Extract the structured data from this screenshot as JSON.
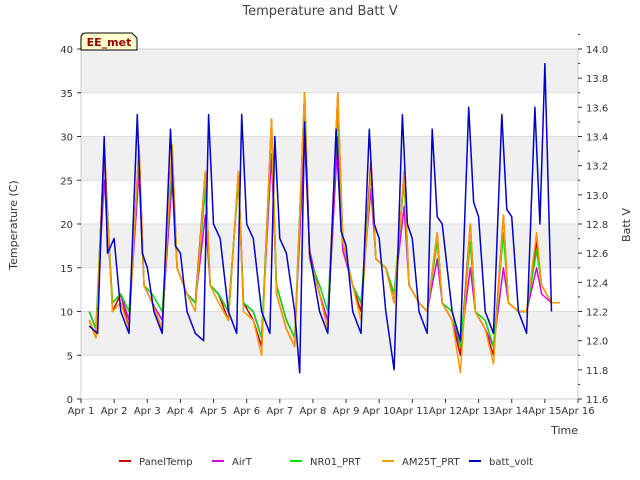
{
  "chart_data": {
    "type": "line",
    "title": "Temperature and Batt V",
    "xlabel": "Time",
    "ylabel": "Temperature (C)",
    "y2label": "Batt V",
    "site_label": "EE_met",
    "x_ticks": [
      "Apr 1",
      "Apr 2",
      "Apr 3",
      "Apr 4",
      "Apr 5",
      "Apr 6",
      "Apr 7",
      "Apr 8",
      "Apr 9",
      "Apr 10",
      "Apr 11",
      "Apr 12",
      "Apr 13",
      "Apr 14",
      "Apr 15",
      "Apr 16"
    ],
    "y_ticks": [
      "0",
      "5",
      "10",
      "15",
      "20",
      "25",
      "30",
      "35",
      "40"
    ],
    "y2_ticks": [
      "11.6",
      "11.8",
      "12.0",
      "12.2",
      "12.4",
      "12.6",
      "12.8",
      "13.0",
      "13.2",
      "13.4",
      "13.6",
      "13.8",
      "14.0"
    ],
    "xlim": [
      0,
      15
    ],
    "ylim": [
      0,
      40
    ],
    "y2lim": [
      11.6,
      14.0
    ],
    "grid": "horizontal bands",
    "legend_position": "bottom",
    "x_units": "day offset from Apr 1",
    "series": [
      {
        "name": "PanelTemp",
        "axis": "left",
        "color": "#cc0000",
        "x": [
          0.25,
          0.45,
          0.7,
          0.95,
          1.2,
          1.45,
          1.75,
          1.9,
          2.15,
          2.45,
          2.75,
          2.9,
          3.2,
          3.45,
          3.75,
          3.9,
          4.15,
          4.45,
          4.75,
          4.9,
          5.2,
          5.45,
          5.75,
          5.9,
          6.2,
          6.45,
          6.75,
          6.9,
          7.2,
          7.45,
          7.75,
          7.9,
          8.2,
          8.45,
          8.75,
          8.9,
          9.2,
          9.45,
          9.75,
          9.9,
          10.2,
          10.45,
          10.75,
          10.9,
          11.2,
          11.45,
          11.75,
          11.9,
          12.2,
          12.45,
          12.75,
          12.9,
          13.2,
          13.45,
          13.75,
          13.9,
          14.2,
          14.45
        ],
        "y": [
          9,
          7,
          29,
          10,
          12,
          8,
          29,
          13,
          11,
          8,
          29,
          15,
          12,
          11,
          26,
          13,
          12,
          9,
          26,
          11,
          9,
          6,
          32,
          12,
          8,
          6,
          35,
          16,
          12,
          8,
          35,
          18,
          13,
          10,
          27,
          16,
          15,
          11,
          26,
          13,
          11,
          10,
          19,
          11,
          9,
          5,
          20,
          10,
          8,
          5,
          21,
          11,
          10,
          10,
          18,
          13,
          11,
          11
        ]
      },
      {
        "name": "AirT",
        "axis": "left",
        "color": "#dd00dd",
        "x": [
          0.25,
          0.45,
          0.7,
          0.95,
          1.2,
          1.45,
          1.75,
          1.9,
          2.15,
          2.45,
          2.75,
          2.9,
          3.2,
          3.45,
          3.75,
          3.9,
          4.15,
          4.45,
          4.75,
          4.9,
          5.2,
          5.45,
          5.75,
          5.9,
          6.2,
          6.45,
          6.75,
          6.9,
          7.2,
          7.45,
          7.75,
          7.9,
          8.2,
          8.45,
          8.75,
          8.9,
          9.2,
          9.45,
          9.75,
          9.9,
          10.2,
          10.45,
          10.75,
          10.9,
          11.2,
          11.45,
          11.75,
          11.9,
          12.2,
          12.45,
          12.75,
          12.9,
          13.2,
          13.45,
          13.75,
          13.9,
          14.2,
          14.45
        ],
        "y": [
          10,
          8,
          25,
          11,
          12,
          9,
          26,
          13,
          11,
          9,
          25,
          15,
          12,
          11,
          21,
          13,
          12,
          10,
          25,
          11,
          10,
          7,
          28,
          13,
          9,
          7,
          30,
          17,
          12,
          9,
          30,
          17,
          13,
          11,
          24,
          16,
          15,
          12,
          22,
          13,
          11,
          10,
          16,
          11,
          9,
          6,
          15,
          10,
          8,
          6,
          15,
          11,
          10,
          10,
          15,
          12,
          11,
          11
        ]
      },
      {
        "name": "NR01_PRT",
        "axis": "left",
        "color": "#00dd00",
        "x": [
          0.25,
          0.45,
          0.7,
          0.95,
          1.2,
          1.45,
          1.75,
          1.9,
          2.15,
          2.45,
          2.75,
          2.9,
          3.2,
          3.45,
          3.75,
          3.9,
          4.15,
          4.45,
          4.75,
          4.9,
          5.2,
          5.45,
          5.75,
          5.9,
          6.2,
          6.45,
          6.75,
          6.9,
          7.2,
          7.45,
          7.75,
          7.9,
          8.2,
          8.45,
          8.75,
          8.9,
          9.2,
          9.45,
          9.75,
          9.9,
          10.2,
          10.45,
          10.75,
          10.9,
          11.2,
          11.45,
          11.75,
          11.9,
          12.2,
          12.45,
          12.75,
          12.9,
          13.2,
          13.45,
          13.75,
          13.9,
          14.2,
          14.45
        ],
        "y": [
          10,
          8,
          28,
          11,
          12,
          10,
          28,
          13,
          12,
          10,
          27,
          15,
          12,
          11,
          24,
          13,
          12,
          10,
          25,
          11,
          10,
          7,
          31,
          13,
          9,
          7,
          35,
          16,
          13,
          10,
          33,
          18,
          13,
          11,
          26,
          16,
          15,
          12,
          25,
          13,
          11,
          10,
          18,
          11,
          10,
          6,
          18,
          10,
          9,
          6,
          19,
          11,
          10,
          10,
          17,
          13,
          11,
          11
        ]
      },
      {
        "name": "AM25T_PRT",
        "axis": "left",
        "color": "#ff9900",
        "x": [
          0.25,
          0.45,
          0.7,
          0.95,
          1.2,
          1.45,
          1.75,
          1.9,
          2.15,
          2.45,
          2.75,
          2.9,
          3.2,
          3.45,
          3.75,
          3.9,
          4.15,
          4.45,
          4.75,
          4.9,
          5.2,
          5.45,
          5.75,
          5.9,
          6.2,
          6.45,
          6.75,
          6.9,
          7.2,
          7.45,
          7.75,
          7.9,
          8.2,
          8.45,
          8.75,
          8.9,
          9.2,
          9.45,
          9.75,
          9.9,
          10.2,
          10.45,
          10.75,
          10.9,
          11.2,
          11.45,
          11.75,
          11.9,
          12.2,
          12.45,
          12.75,
          12.9,
          13.2,
          13.45,
          13.75,
          13.9,
          14.2,
          14.45
        ],
        "y": [
          9,
          7,
          28,
          10,
          11,
          8,
          29,
          13,
          11,
          8,
          29,
          15,
          12,
          10,
          26,
          13,
          11,
          9,
          26,
          10,
          9,
          5,
          32,
          12,
          8,
          6,
          35,
          16,
          12,
          8,
          35,
          18,
          13,
          9,
          26,
          16,
          15,
          11,
          26,
          13,
          11,
          10,
          19,
          11,
          9,
          3,
          20,
          10,
          8,
          4,
          21,
          11,
          10,
          10,
          19,
          13,
          11,
          11
        ]
      },
      {
        "name": "batt_volt",
        "axis": "right",
        "color": "#0000cc",
        "x": [
          0.25,
          0.5,
          0.7,
          0.8,
          1.0,
          1.2,
          1.45,
          1.7,
          1.85,
          2.0,
          2.2,
          2.45,
          2.7,
          2.85,
          3.0,
          3.2,
          3.45,
          3.7,
          3.85,
          4.0,
          4.2,
          4.45,
          4.7,
          4.85,
          5.0,
          5.2,
          5.45,
          5.7,
          5.85,
          6.0,
          6.2,
          6.45,
          6.6,
          6.75,
          6.9,
          7.2,
          7.45,
          7.7,
          7.85,
          8.0,
          8.2,
          8.45,
          8.7,
          8.85,
          9.0,
          9.2,
          9.45,
          9.7,
          9.85,
          10.0,
          10.2,
          10.45,
          10.6,
          10.75,
          10.9,
          11.2,
          11.45,
          11.7,
          11.85,
          12.0,
          12.2,
          12.45,
          12.7,
          12.85,
          13.0,
          13.2,
          13.45,
          13.7,
          13.85,
          14.0,
          14.2
        ],
        "y": [
          12.1,
          12.05,
          13.4,
          12.6,
          12.7,
          12.2,
          12.05,
          13.55,
          12.6,
          12.5,
          12.2,
          12.05,
          13.45,
          12.65,
          12.6,
          12.2,
          12.05,
          12.0,
          13.55,
          12.8,
          12.7,
          12.2,
          12.05,
          13.55,
          12.8,
          12.7,
          12.2,
          12.05,
          13.4,
          12.7,
          12.6,
          12.2,
          11.78,
          13.5,
          12.6,
          12.2,
          12.05,
          13.45,
          12.75,
          12.65,
          12.2,
          12.05,
          13.45,
          12.8,
          12.7,
          12.2,
          11.8,
          13.55,
          12.8,
          12.7,
          12.2,
          12.05,
          13.45,
          12.85,
          12.8,
          12.2,
          12.0,
          13.6,
          12.95,
          12.85,
          12.2,
          12.05,
          13.55,
          12.9,
          12.85,
          12.2,
          12.05,
          13.6,
          12.8,
          13.9,
          12.2
        ]
      }
    ]
  }
}
